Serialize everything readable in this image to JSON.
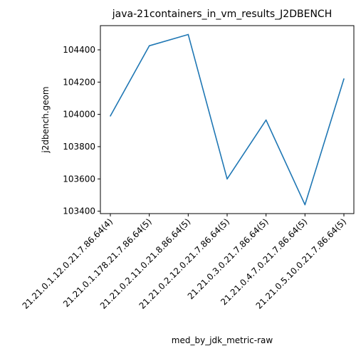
{
  "chart_data": {
    "type": "line",
    "title": "java-21containers_in_vm_results_J2DBENCH",
    "xlabel": "med_by_jdk_metric-raw",
    "ylabel": "j2dbench.geom",
    "categories": [
      "21.21.0.1.12.0.21.7.86.64(4)",
      "21.21.0.1.178.21.7.86.64(5)",
      "21.21.0.2.11.0.21.8.86.64(5)",
      "21.21.0.2.12.0.21.7.86.64(5)",
      "21.21.0.3.0.21.7.86.64(5)",
      "21.21.0.4.7.0.21.7.86.64(5)",
      "21.21.0.5.10.0.21.7.86.64(5)"
    ],
    "series": [
      {
        "color": "#1f77b4",
        "values": [
          103990,
          104425,
          104495,
          103600,
          103965,
          103440,
          104220
        ]
      }
    ],
    "ylim": [
      103385,
      104550
    ],
    "yticks": [
      103400,
      103600,
      103800,
      104000,
      104200,
      104400
    ],
    "grid": false,
    "legend": "none"
  }
}
